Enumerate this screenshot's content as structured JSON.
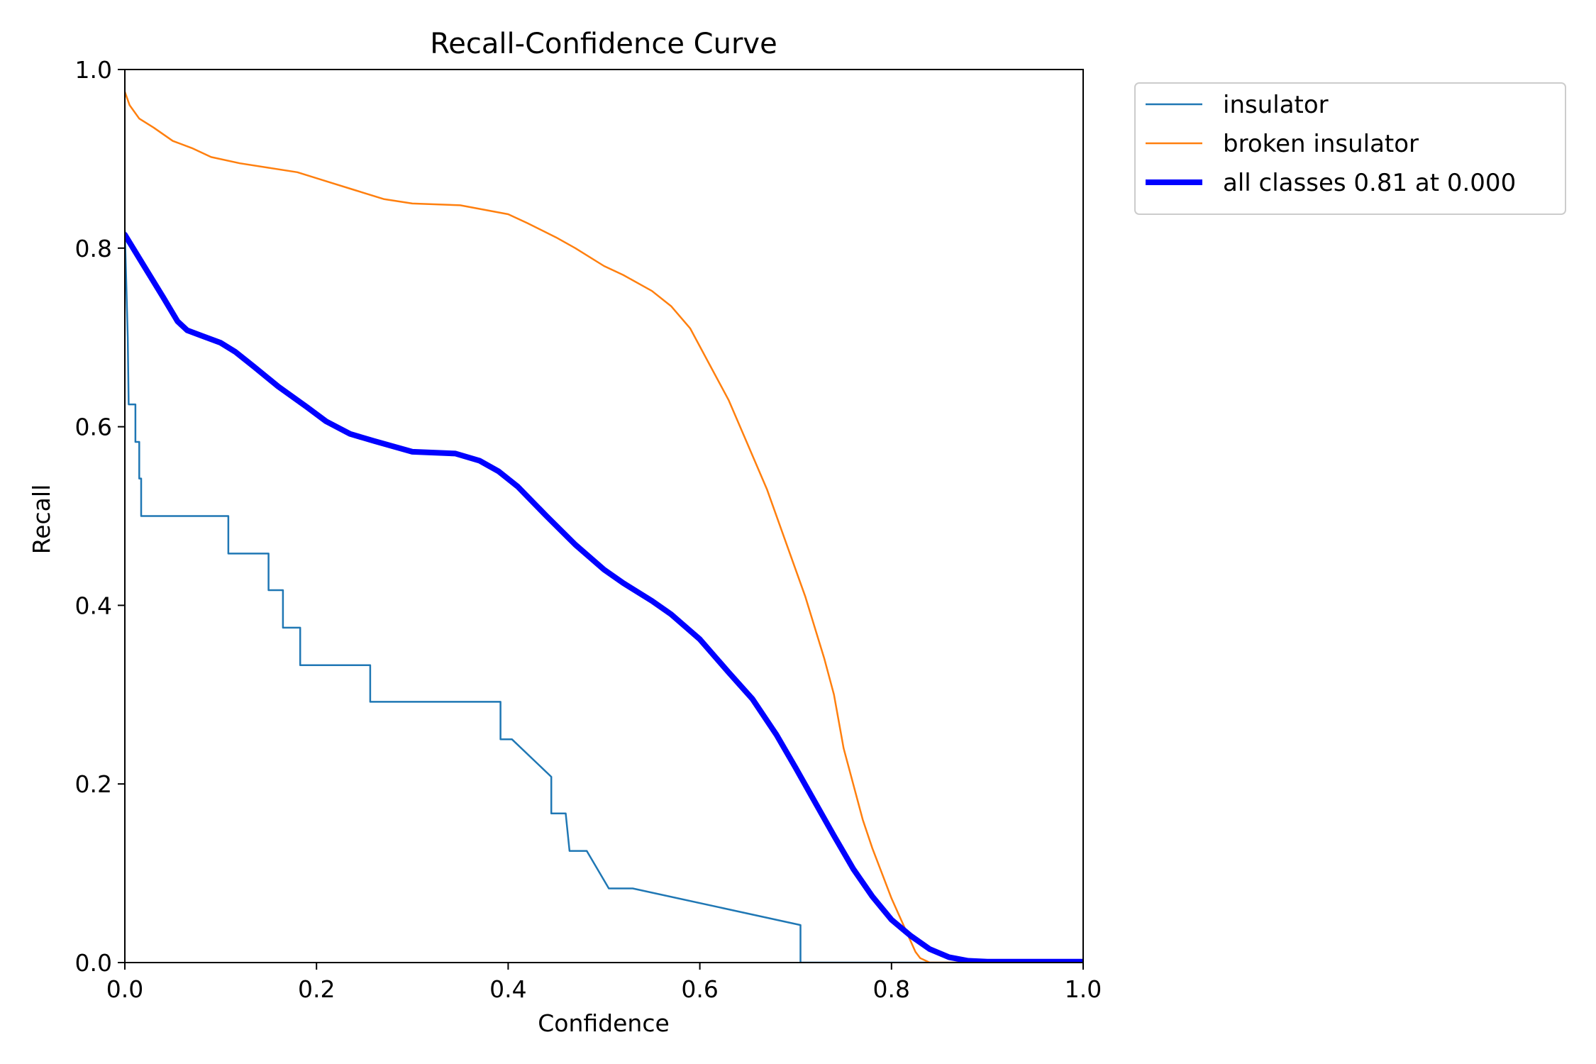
{
  "chart_data": {
    "type": "line",
    "title": "Recall-Confidence Curve",
    "xlabel": "Confidence",
    "ylabel": "Recall",
    "xlim": [
      0,
      1
    ],
    "ylim": [
      0,
      1
    ],
    "xticks": [
      "0.0",
      "0.2",
      "0.4",
      "0.6",
      "0.8",
      "1.0"
    ],
    "yticks": [
      "0.0",
      "0.2",
      "0.4",
      "0.6",
      "0.8",
      "1.0"
    ],
    "grid": false,
    "legend_position": "outside-top-right",
    "series": [
      {
        "name": "insulator",
        "color": "#1f77b4",
        "style": "step",
        "points": [
          [
            0.0,
            0.82
          ],
          [
            0.003,
            0.7
          ],
          [
            0.004,
            0.625
          ],
          [
            0.011,
            0.625
          ],
          [
            0.011,
            0.583
          ],
          [
            0.015,
            0.583
          ],
          [
            0.015,
            0.542
          ],
          [
            0.017,
            0.542
          ],
          [
            0.017,
            0.5
          ],
          [
            0.108,
            0.5
          ],
          [
            0.108,
            0.458
          ],
          [
            0.15,
            0.458
          ],
          [
            0.15,
            0.417
          ],
          [
            0.165,
            0.417
          ],
          [
            0.165,
            0.375
          ],
          [
            0.183,
            0.375
          ],
          [
            0.183,
            0.333
          ],
          [
            0.256,
            0.333
          ],
          [
            0.256,
            0.292
          ],
          [
            0.392,
            0.292
          ],
          [
            0.392,
            0.25
          ],
          [
            0.404,
            0.25
          ],
          [
            0.445,
            0.208
          ],
          [
            0.445,
            0.167
          ],
          [
            0.46,
            0.167
          ],
          [
            0.464,
            0.125
          ],
          [
            0.482,
            0.125
          ],
          [
            0.505,
            0.083
          ],
          [
            0.53,
            0.083
          ],
          [
            0.705,
            0.042
          ],
          [
            0.705,
            0.0
          ],
          [
            1.0,
            0.0
          ]
        ]
      },
      {
        "name": "broken insulator",
        "color": "#ff7f0e",
        "style": "line",
        "points": [
          [
            0.0,
            0.975
          ],
          [
            0.005,
            0.96
          ],
          [
            0.015,
            0.945
          ],
          [
            0.03,
            0.935
          ],
          [
            0.05,
            0.92
          ],
          [
            0.07,
            0.912
          ],
          [
            0.09,
            0.902
          ],
          [
            0.12,
            0.895
          ],
          [
            0.15,
            0.89
          ],
          [
            0.18,
            0.885
          ],
          [
            0.21,
            0.875
          ],
          [
            0.24,
            0.865
          ],
          [
            0.27,
            0.855
          ],
          [
            0.3,
            0.85
          ],
          [
            0.35,
            0.848
          ],
          [
            0.4,
            0.838
          ],
          [
            0.42,
            0.828
          ],
          [
            0.45,
            0.812
          ],
          [
            0.47,
            0.8
          ],
          [
            0.5,
            0.78
          ],
          [
            0.52,
            0.77
          ],
          [
            0.55,
            0.752
          ],
          [
            0.57,
            0.735
          ],
          [
            0.59,
            0.71
          ],
          [
            0.61,
            0.67
          ],
          [
            0.63,
            0.63
          ],
          [
            0.65,
            0.58
          ],
          [
            0.67,
            0.53
          ],
          [
            0.69,
            0.47
          ],
          [
            0.71,
            0.41
          ],
          [
            0.73,
            0.34
          ],
          [
            0.74,
            0.3
          ],
          [
            0.75,
            0.24
          ],
          [
            0.76,
            0.2
          ],
          [
            0.77,
            0.16
          ],
          [
            0.78,
            0.128
          ],
          [
            0.79,
            0.1
          ],
          [
            0.8,
            0.072
          ],
          [
            0.81,
            0.048
          ],
          [
            0.82,
            0.024
          ],
          [
            0.825,
            0.012
          ],
          [
            0.83,
            0.005
          ],
          [
            0.84,
            0.0
          ],
          [
            1.0,
            0.0
          ]
        ]
      },
      {
        "name": "all classes 0.81 at 0.000",
        "color": "#0000ff",
        "style": "thick",
        "points": [
          [
            0.0,
            0.815
          ],
          [
            0.02,
            0.78
          ],
          [
            0.04,
            0.745
          ],
          [
            0.055,
            0.718
          ],
          [
            0.065,
            0.708
          ],
          [
            0.08,
            0.702
          ],
          [
            0.1,
            0.694
          ],
          [
            0.115,
            0.684
          ],
          [
            0.135,
            0.667
          ],
          [
            0.16,
            0.645
          ],
          [
            0.19,
            0.622
          ],
          [
            0.21,
            0.606
          ],
          [
            0.235,
            0.592
          ],
          [
            0.26,
            0.584
          ],
          [
            0.3,
            0.572
          ],
          [
            0.345,
            0.57
          ],
          [
            0.37,
            0.562
          ],
          [
            0.39,
            0.55
          ],
          [
            0.41,
            0.533
          ],
          [
            0.44,
            0.5
          ],
          [
            0.47,
            0.468
          ],
          [
            0.5,
            0.44
          ],
          [
            0.52,
            0.425
          ],
          [
            0.55,
            0.405
          ],
          [
            0.57,
            0.39
          ],
          [
            0.6,
            0.362
          ],
          [
            0.63,
            0.325
          ],
          [
            0.655,
            0.295
          ],
          [
            0.68,
            0.255
          ],
          [
            0.7,
            0.218
          ],
          [
            0.72,
            0.18
          ],
          [
            0.74,
            0.142
          ],
          [
            0.76,
            0.105
          ],
          [
            0.78,
            0.074
          ],
          [
            0.8,
            0.048
          ],
          [
            0.82,
            0.03
          ],
          [
            0.84,
            0.015
          ],
          [
            0.86,
            0.006
          ],
          [
            0.88,
            0.002
          ],
          [
            0.9,
            0.001
          ],
          [
            1.0,
            0.001
          ]
        ]
      }
    ]
  }
}
